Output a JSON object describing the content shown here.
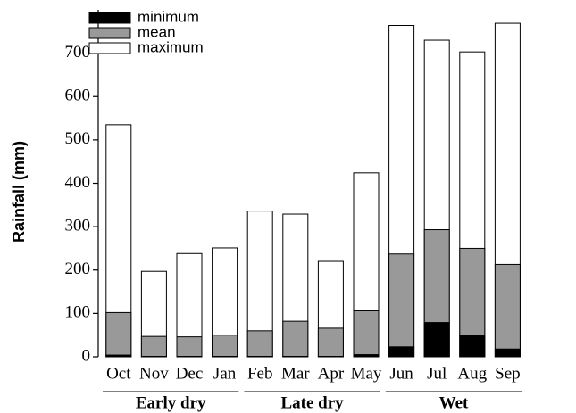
{
  "chart_data": {
    "type": "bar",
    "overlap": true,
    "y_label": "Rainfall (mm)",
    "groups": [
      {
        "label": "Early dry",
        "categories": [
          "Oct",
          "Nov",
          "Dec",
          "Jan"
        ]
      },
      {
        "label": "Late dry",
        "categories": [
          "Feb",
          "Mar",
          "Apr",
          "May"
        ]
      },
      {
        "label": "Wet",
        "categories": [
          "Jun",
          "Jul",
          "Aug",
          "Sep"
        ]
      }
    ],
    "series": [
      {
        "name": "minimum",
        "color": "#000000",
        "values": [
          4,
          1,
          1,
          1,
          1,
          1,
          1,
          5,
          23,
          79,
          50,
          18
        ]
      },
      {
        "name": "mean",
        "color": "#999999",
        "values": [
          102,
          47,
          46,
          50,
          60,
          82,
          66,
          106,
          237,
          293,
          250,
          213
        ]
      },
      {
        "name": "maximum",
        "color": "#ffffff",
        "values": [
          535,
          197,
          238,
          251,
          336,
          329,
          220,
          424,
          764,
          730,
          703,
          769
        ]
      }
    ],
    "ylim": [
      0,
      800
    ],
    "yticks": [
      0,
      100,
      200,
      300,
      400,
      500,
      600,
      700
    ],
    "legend": "upper-left"
  }
}
